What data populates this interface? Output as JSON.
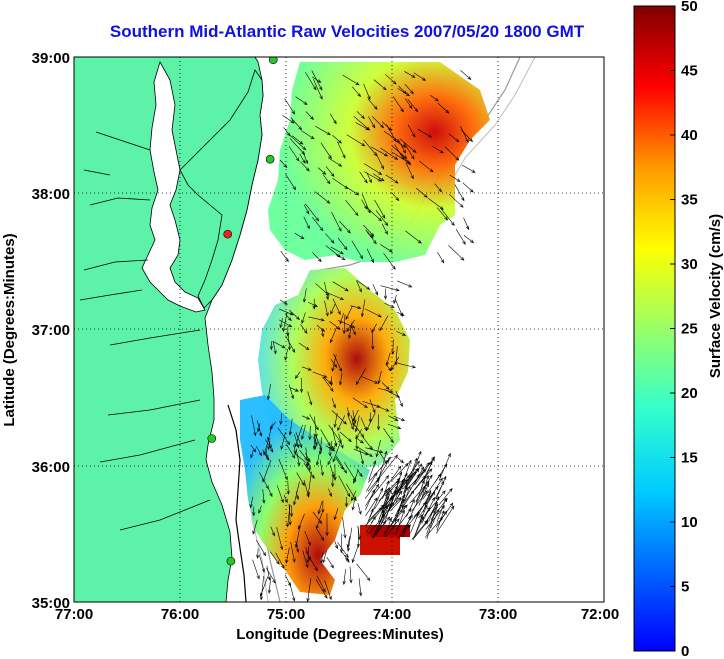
{
  "title": "Southern Mid-Atlantic Raw Velocities 2007/05/20 1800 GMT",
  "map": {
    "xlabel": "Longitude (Degrees:Minutes)",
    "ylabel": "Latitude (Degrees:Minutes)",
    "x_ticks": [
      "77:00",
      "76:00",
      "75:00",
      "74:00",
      "73:00",
      "72:00"
    ],
    "y_ticks": [
      "39:00",
      "38:00",
      "37:00",
      "36:00",
      "35:00"
    ],
    "lon_range": [
      -77,
      -72
    ],
    "lat_range": [
      35,
      39
    ],
    "land_color": "#5cf2a8",
    "grid": "dotted"
  },
  "colorbar": {
    "label": "Surface Velocity (cm/s)",
    "ticks": [
      "50",
      "45",
      "40",
      "35",
      "30",
      "25",
      "20",
      "15",
      "10",
      "5",
      "0"
    ],
    "range": [
      0,
      50
    ],
    "colormap": "jet"
  },
  "stations": [
    {
      "lon": -75.12,
      "lat": 38.98,
      "color": "#22cc22"
    },
    {
      "lon": -75.15,
      "lat": 38.25,
      "color": "#22cc22"
    },
    {
      "lon": -75.55,
      "lat": 37.7,
      "color": "#ee2222"
    },
    {
      "lon": -75.7,
      "lat": 36.2,
      "color": "#22cc22"
    },
    {
      "lon": -75.52,
      "lat": 35.3,
      "color": "#22cc22"
    }
  ]
}
